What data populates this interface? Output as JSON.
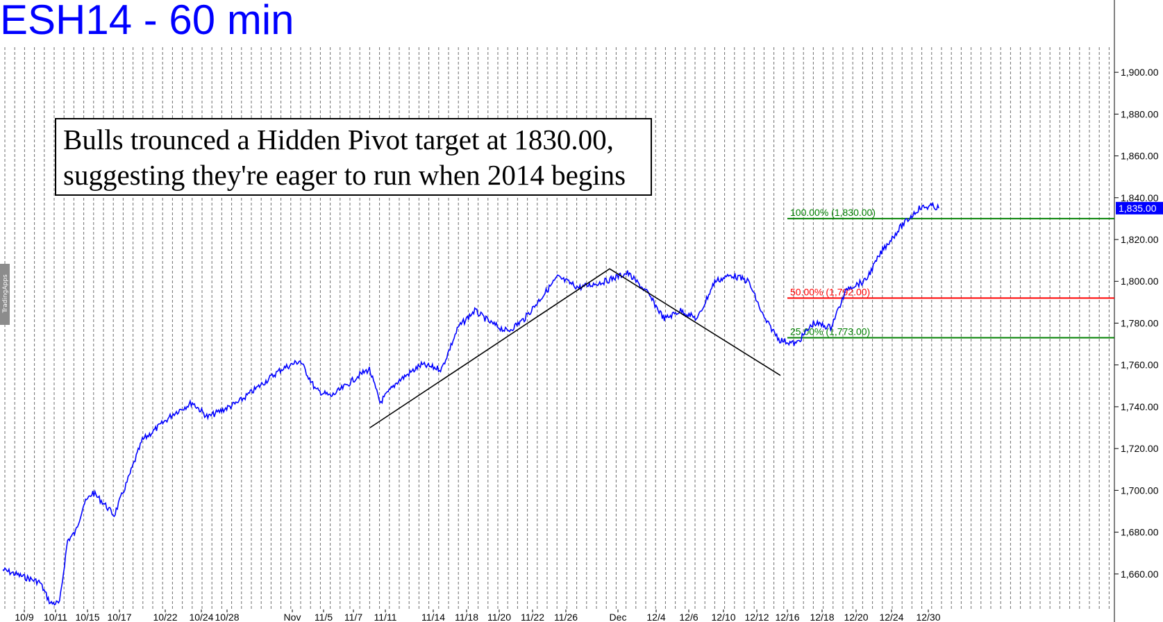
{
  "chart_data": {
    "type": "line",
    "title": "ESH14 - 60 min",
    "annotation": [
      "Bulls trounced a Hidden Pivot target at 1830.00,",
      "suggesting they're eager to run when 2014 begins"
    ],
    "x_ticks": [
      "10/9",
      "10/11",
      "10/15",
      "10/17",
      "10/22",
      "10/24",
      "10/28",
      "Nov",
      "11/5",
      "11/7",
      "11/11",
      "11/14",
      "11/18",
      "11/20",
      "11/22",
      "11/26",
      "Dec",
      "12/4",
      "12/6",
      "12/10",
      "12/12",
      "12/16",
      "12/18",
      "12/20",
      "12/24",
      "12/30"
    ],
    "ylim": [
      1643,
      1912
    ],
    "y_ticks": [
      "1,660.00",
      "1,680.00",
      "1,700.00",
      "1,720.00",
      "1,740.00",
      "1,760.00",
      "1,780.00",
      "1,800.00",
      "1,820.00",
      "1,840.00",
      "1,860.00",
      "1,880.00",
      "1,900.00"
    ],
    "y_tick_values": [
      1660,
      1680,
      1700,
      1720,
      1740,
      1760,
      1780,
      1800,
      1820,
      1840,
      1860,
      1880,
      1900
    ],
    "last_price": {
      "value": 1835,
      "label": "1,835.00",
      "color": "#0000ff"
    },
    "series": [
      {
        "color": "#0000ff",
        "points": [
          [
            "10/9",
            1662
          ],
          [
            "10/9",
            1656
          ],
          [
            "10/9",
            1646
          ],
          [
            "10/11",
            1646
          ],
          [
            "10/11",
            1676
          ],
          [
            "10/11",
            1680
          ],
          [
            "10/11",
            1693
          ],
          [
            "10/15",
            1699
          ],
          [
            "10/15",
            1694
          ],
          [
            "10/15",
            1688
          ],
          [
            "10/17",
            1704
          ],
          [
            "10/17",
            1724
          ],
          [
            "10/17",
            1730
          ],
          [
            "10/22",
            1737
          ],
          [
            "10/22",
            1742
          ],
          [
            "10/24",
            1735
          ],
          [
            "10/24",
            1738
          ],
          [
            "10/28",
            1742
          ],
          [
            "10/28",
            1750
          ],
          [
            "10/28",
            1758
          ],
          [
            "Nov",
            1762
          ],
          [
            "Nov",
            1748
          ],
          [
            "11/5",
            1745
          ],
          [
            "11/5",
            1750
          ],
          [
            "11/7",
            1755
          ],
          [
            "11/7",
            1758
          ],
          [
            "11/7",
            1742
          ],
          [
            "11/11",
            1752
          ],
          [
            "11/11",
            1760
          ],
          [
            "11/14",
            1758
          ],
          [
            "11/14",
            1778
          ],
          [
            "11/18",
            1786
          ],
          [
            "11/18",
            1780
          ],
          [
            "11/20",
            1776
          ],
          [
            "11/20",
            1782
          ],
          [
            "11/22",
            1792
          ],
          [
            "11/22",
            1802
          ],
          [
            "11/26",
            1797
          ],
          [
            "11/26",
            1800
          ],
          [
            "Dec",
            1804
          ],
          [
            "Dec",
            1795
          ],
          [
            "12/4",
            1782
          ],
          [
            "12/4",
            1786
          ],
          [
            "12/6",
            1782
          ],
          [
            "12/6",
            1800
          ],
          [
            "12/10",
            1803
          ],
          [
            "12/10",
            1800
          ],
          [
            "12/12",
            1782
          ],
          [
            "12/12",
            1772
          ],
          [
            "12/16",
            1770
          ],
          [
            "12/16",
            1780
          ],
          [
            "12/18",
            1778
          ],
          [
            "12/18",
            1797
          ],
          [
            "12/20",
            1800
          ],
          [
            "12/20",
            1815
          ],
          [
            "12/24",
            1826
          ],
          [
            "12/24",
            1835
          ],
          [
            "12/30",
            1836
          ],
          [
            "12/30",
            1835
          ]
        ]
      }
    ],
    "pivot_lines": [
      {
        "points": [
          [
            "11/7",
            1730
          ],
          [
            "Dec",
            1806
          ],
          [
            "12/16",
            1755
          ]
        ],
        "color": "#000000"
      }
    ],
    "levels": [
      {
        "value": 1830,
        "label": "100.00% (1,830.00)",
        "color": "#008000"
      },
      {
        "value": 1792,
        "label": "50.00% (1,792.00)",
        "color": "#ff0000"
      },
      {
        "value": 1773,
        "label": "25.00% (1,773.00)",
        "color": "#008000"
      }
    ],
    "grid": true,
    "brand": "TradingApps"
  }
}
